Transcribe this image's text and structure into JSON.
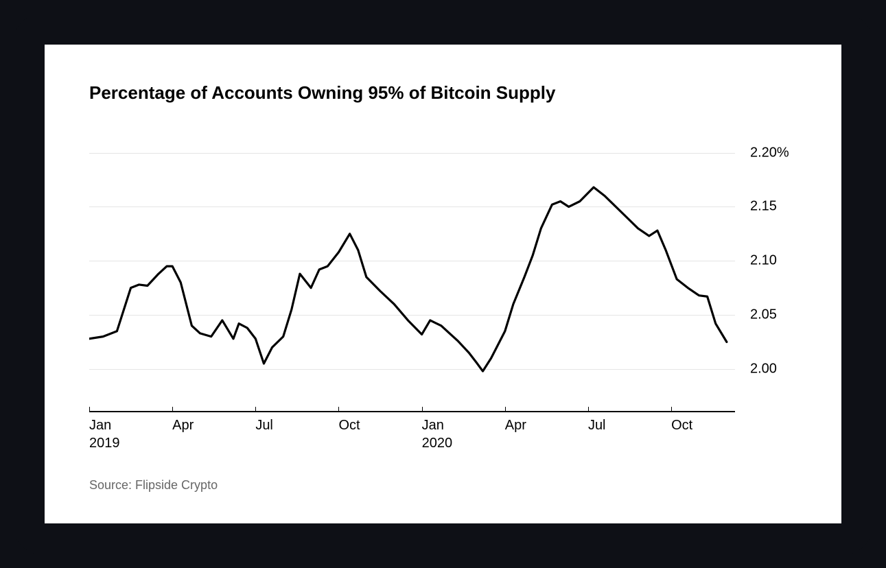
{
  "chart": {
    "type": "line",
    "title": "Percentage of Accounts Owning 95% of Bitcoin Supply",
    "title_fontsize": 26,
    "title_fontweight": 700,
    "title_color": "#000000",
    "background_color": "#ffffff",
    "outer_background_color": "#0e1016",
    "line_color": "#000000",
    "line_width": 3.2,
    "grid_color": "#e5e5e5",
    "axis_color": "#000000",
    "axis_width": 2,
    "label_color": "#000000",
    "label_fontsize": 20,
    "ymin": 1.96,
    "ymax": 2.22,
    "yticks": [
      {
        "value": 2.0,
        "label": "2.00"
      },
      {
        "value": 2.05,
        "label": "2.05"
      },
      {
        "value": 2.1,
        "label": "2.10"
      },
      {
        "value": 2.15,
        "label": "2.15"
      },
      {
        "value": 2.2,
        "label": "2.20%"
      }
    ],
    "xmin": 0,
    "xmax": 23.3,
    "xticks": [
      {
        "pos": 0,
        "label": "Jan\n2019"
      },
      {
        "pos": 3,
        "label": "Apr"
      },
      {
        "pos": 6,
        "label": "Jul"
      },
      {
        "pos": 9,
        "label": "Oct"
      },
      {
        "pos": 12,
        "label": "Jan\n2020"
      },
      {
        "pos": 15,
        "label": "Apr"
      },
      {
        "pos": 18,
        "label": "Jul"
      },
      {
        "pos": 21,
        "label": "Oct"
      }
    ],
    "series": {
      "x": [
        0,
        0.5,
        1.0,
        1.5,
        1.8,
        2.1,
        2.5,
        2.8,
        3.0,
        3.3,
        3.7,
        4.0,
        4.4,
        4.8,
        5.2,
        5.4,
        5.7,
        6.0,
        6.3,
        6.6,
        7.0,
        7.3,
        7.6,
        8.0,
        8.3,
        8.6,
        9.0,
        9.4,
        9.7,
        10.0,
        10.5,
        11.0,
        11.5,
        12.0,
        12.3,
        12.7,
        13.0,
        13.3,
        13.7,
        14.0,
        14.2,
        14.5,
        15.0,
        15.3,
        15.7,
        16.0,
        16.3,
        16.7,
        17.0,
        17.3,
        17.7,
        18.2,
        18.6,
        19.0,
        19.4,
        19.8,
        20.2,
        20.5,
        20.8,
        21.2,
        21.6,
        22.0,
        22.3,
        22.6,
        23.0
      ],
      "y": [
        2.028,
        2.03,
        2.035,
        2.075,
        2.078,
        2.077,
        2.088,
        2.095,
        2.095,
        2.08,
        2.04,
        2.033,
        2.03,
        2.045,
        2.028,
        2.042,
        2.038,
        2.028,
        2.005,
        2.02,
        2.03,
        2.055,
        2.088,
        2.075,
        2.092,
        2.095,
        2.108,
        2.125,
        2.11,
        2.085,
        2.072,
        2.06,
        2.045,
        2.032,
        2.045,
        2.04,
        2.033,
        2.026,
        2.015,
        2.005,
        1.998,
        2.01,
        2.035,
        2.06,
        2.085,
        2.105,
        2.13,
        2.152,
        2.155,
        2.15,
        2.155,
        2.168,
        2.16,
        2.15,
        2.14,
        2.13,
        2.123,
        2.128,
        2.11,
        2.083,
        2.075,
        2.068,
        2.067,
        2.042,
        2.025
      ]
    },
    "source": "Source: Flipside Crypto",
    "source_color": "#666666",
    "source_fontsize": 18
  }
}
